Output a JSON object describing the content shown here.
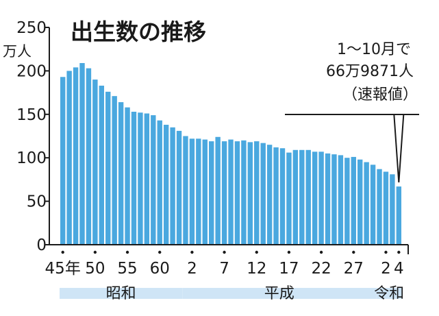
{
  "chart_data": {
    "type": "bar",
    "title": "出生数の推移",
    "ylabel_unit": "万人",
    "ylim": [
      0,
      250
    ],
    "yticks": [
      0,
      50,
      100,
      150,
      200,
      250
    ],
    "ytick_labels": [
      "0",
      "50",
      "100",
      "150",
      "200",
      "250"
    ],
    "xtick_labels": [
      "45年",
      "50",
      "55",
      "60",
      "2",
      "7",
      "12",
      "17",
      "22",
      "27",
      "2",
      "4"
    ],
    "xtick_bar_index": [
      0,
      5,
      10,
      15,
      20,
      25,
      30,
      35,
      40,
      45,
      50,
      52
    ],
    "eras": [
      {
        "label": "昭和",
        "start_index": 0,
        "end_index": 18
      },
      {
        "label": "平成",
        "start_index": 19,
        "end_index": 48
      },
      {
        "label": "令和",
        "start_index": 49,
        "end_index": 52
      }
    ],
    "categories": [
      "1970",
      "1971",
      "1972",
      "1973",
      "1974",
      "1975",
      "1976",
      "1977",
      "1978",
      "1979",
      "1980",
      "1981",
      "1982",
      "1983",
      "1984",
      "1985",
      "1986",
      "1987",
      "1988",
      "1989",
      "1990",
      "1991",
      "1992",
      "1993",
      "1994",
      "1995",
      "1996",
      "1997",
      "1998",
      "1999",
      "2000",
      "2001",
      "2002",
      "2003",
      "2004",
      "2005",
      "2006",
      "2007",
      "2008",
      "2009",
      "2010",
      "2011",
      "2012",
      "2013",
      "2014",
      "2015",
      "2016",
      "2017",
      "2018",
      "2019",
      "2020",
      "2021"
    ],
    "values": [
      193,
      200,
      204,
      209,
      203,
      190,
      183,
      176,
      171,
      164,
      158,
      153,
      152,
      151,
      149,
      143,
      138,
      135,
      131,
      125,
      122,
      122,
      121,
      119,
      124,
      119,
      121,
      119,
      120,
      118,
      119,
      117,
      115,
      112,
      111,
      106,
      109,
      109,
      109,
      107,
      107,
      105,
      104,
      103,
      100,
      101,
      98,
      95,
      92,
      87,
      84,
      81
    ],
    "highlight": {
      "value": 66.9871,
      "lines": [
        "1～10月で",
        "66万9871人",
        "（速報値）"
      ]
    },
    "grid": false,
    "legend": "none",
    "colors": {
      "bar": "#4aa8df",
      "era_band": "#cfe5f6",
      "axis": "#1a1a1a"
    }
  }
}
